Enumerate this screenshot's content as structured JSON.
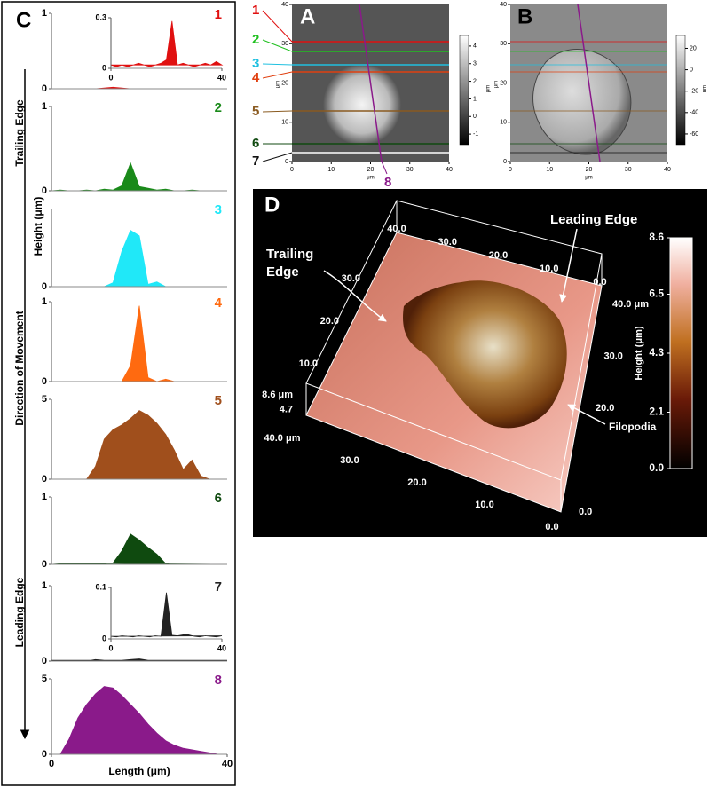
{
  "chart_data": [
    {
      "type": "area",
      "title": "1",
      "color": "#e01010",
      "xlim": [
        0,
        40
      ],
      "ylim": [
        0,
        1
      ],
      "yticks": [
        0,
        1
      ],
      "x": [
        0,
        2,
        4,
        6,
        8,
        10,
        12,
        14,
        16,
        18,
        20,
        22,
        24,
        26,
        28,
        30,
        32,
        34,
        36,
        38,
        40
      ],
      "values": [
        0,
        0,
        0,
        0,
        0,
        0,
        0.01,
        0.02,
        0.01,
        0,
        0,
        0,
        0,
        0,
        0,
        0,
        0,
        0,
        0,
        0,
        0
      ]
    },
    {
      "type": "area",
      "title": "2",
      "color": "#1a8a1a",
      "xlim": [
        0,
        40
      ],
      "ylim": [
        0,
        1
      ],
      "yticks": [
        0,
        1
      ],
      "x": [
        0,
        2,
        4,
        6,
        8,
        10,
        12,
        14,
        16,
        18,
        20,
        22,
        24,
        26,
        28,
        30,
        32,
        34,
        36,
        38,
        40
      ],
      "values": [
        0,
        0.01,
        0,
        0,
        0.01,
        0,
        0.02,
        0.01,
        0.06,
        0.33,
        0.05,
        0.03,
        0.01,
        0.02,
        0,
        0,
        0.01,
        0,
        0,
        0,
        0
      ]
    },
    {
      "type": "area",
      "title": "3",
      "color": "#20e8f8",
      "xlim": [
        0,
        40
      ],
      "ylim": [
        0,
        1
      ],
      "yticks": [
        0
      ],
      "x": [
        0,
        2,
        4,
        6,
        8,
        10,
        12,
        14,
        16,
        18,
        20,
        22,
        24,
        26,
        28,
        30,
        32,
        34,
        36,
        38,
        40
      ],
      "values": [
        0,
        0,
        0,
        0,
        0,
        0,
        0,
        0.05,
        0.45,
        0.72,
        0.65,
        0.03,
        0.06,
        0,
        0,
        0,
        0,
        0,
        0,
        0,
        0
      ]
    },
    {
      "type": "area",
      "title": "4",
      "color": "#ff6a10",
      "xlim": [
        0,
        40
      ],
      "ylim": [
        0,
        1
      ],
      "yticks": [
        0,
        1
      ],
      "x": [
        0,
        2,
        4,
        6,
        8,
        10,
        12,
        14,
        16,
        18,
        20,
        22,
        24,
        26,
        28,
        30,
        32,
        34,
        36,
        38,
        40
      ],
      "values": [
        0,
        0,
        0,
        0,
        0,
        0,
        0,
        0,
        0,
        0.2,
        0.95,
        0.05,
        0,
        0.03,
        0,
        0,
        0,
        0,
        0,
        0,
        0
      ]
    },
    {
      "type": "area",
      "title": "5",
      "color": "#a04f1c",
      "xlim": [
        0,
        40
      ],
      "ylim": [
        0,
        5
      ],
      "yticks": [
        0,
        5
      ],
      "x": [
        0,
        2,
        4,
        6,
        8,
        10,
        12,
        14,
        16,
        18,
        20,
        22,
        24,
        26,
        28,
        30,
        32,
        34,
        36,
        38,
        40
      ],
      "values": [
        0,
        0,
        0,
        0,
        0,
        0.8,
        2.5,
        3.1,
        3.4,
        3.8,
        4.3,
        4.0,
        3.5,
        2.8,
        1.8,
        0.6,
        1.2,
        0.2,
        0,
        0,
        0
      ]
    },
    {
      "type": "area",
      "title": "6",
      "color": "#0f4a0f",
      "xlim": [
        0,
        40
      ],
      "ylim": [
        0,
        1
      ],
      "yticks": [
        0,
        1
      ],
      "x": [
        0,
        2,
        4,
        6,
        8,
        10,
        12,
        14,
        16,
        18,
        20,
        22,
        24,
        26,
        28,
        30,
        32,
        34,
        36,
        38,
        40
      ],
      "values": [
        0.02,
        0.01,
        0.01,
        0.01,
        0.01,
        0.01,
        0.01,
        0.02,
        0.2,
        0.45,
        0.36,
        0.25,
        0.15,
        0.01,
        0,
        0,
        0,
        0,
        0,
        0,
        0
      ]
    },
    {
      "type": "area",
      "title": "7",
      "color": "#222222",
      "xlim": [
        0,
        40
      ],
      "ylim": [
        0,
        1
      ],
      "yticks": [
        0,
        1
      ],
      "x": [
        0,
        2,
        4,
        6,
        8,
        10,
        12,
        14,
        16,
        18,
        20,
        22,
        24,
        26,
        28,
        30,
        32,
        34,
        36,
        38,
        40
      ],
      "values": [
        0.01,
        0,
        0,
        0.01,
        0,
        0.02,
        0.01,
        0,
        0.01,
        0.02,
        0.03,
        0.01,
        0,
        0.01,
        0,
        0.01,
        0,
        0,
        0.01,
        0,
        0.01
      ]
    },
    {
      "type": "area",
      "title": "8",
      "color": "#8a1a8a",
      "xlim": [
        0,
        40
      ],
      "ylim": [
        0,
        5
      ],
      "yticks": [
        0,
        5
      ],
      "xticks": [
        0,
        40
      ],
      "xlabel": "Length (μm)",
      "x": [
        0,
        2,
        4,
        6,
        8,
        10,
        12,
        14,
        16,
        18,
        20,
        22,
        24,
        26,
        28,
        30,
        32,
        34,
        36,
        38,
        40
      ],
      "values": [
        0,
        0,
        1.0,
        2.4,
        3.3,
        4.0,
        4.5,
        4.4,
        3.9,
        3.3,
        2.7,
        2.0,
        1.4,
        0.9,
        0.6,
        0.4,
        0.3,
        0.2,
        0.1,
        0,
        0
      ]
    },
    {
      "type": "area",
      "color": "#e01010",
      "xlim": [
        0,
        40
      ],
      "ylim": [
        0,
        0.3
      ],
      "yticks": [
        0,
        0.3
      ],
      "xticks": [
        0,
        40
      ],
      "x": [
        0,
        2,
        4,
        6,
        8,
        10,
        12,
        14,
        16,
        18,
        20,
        22,
        24,
        26,
        28,
        30,
        32,
        34,
        36,
        38,
        40
      ],
      "values": [
        0.02,
        0.01,
        0.02,
        0.01,
        0.02,
        0.03,
        0.02,
        0.01,
        0.02,
        0.03,
        0.05,
        0.28,
        0.02,
        0.03,
        0.02,
        0.01,
        0.02,
        0.03,
        0.02,
        0.04,
        0.02
      ]
    },
    {
      "type": "area",
      "color": "#222222",
      "xlim": [
        0,
        40
      ],
      "ylim": [
        0,
        0.1
      ],
      "yticks": [
        0,
        0.1
      ],
      "xticks": [
        0,
        40
      ],
      "x": [
        0,
        2,
        4,
        6,
        8,
        10,
        12,
        14,
        16,
        18,
        20,
        22,
        24,
        26,
        28,
        30,
        32,
        34,
        36,
        38,
        40
      ],
      "values": [
        0.005,
        0.004,
        0.006,
        0.005,
        0.004,
        0.006,
        0.005,
        0.004,
        0.006,
        0.005,
        0.09,
        0.007,
        0.006,
        0.008,
        0.008,
        0.005,
        0.004,
        0.006,
        0.005,
        0.004,
        0.006
      ]
    }
  ],
  "panel_c": {
    "label": "C",
    "ylabel": "Height  (μm)",
    "side_labels": [
      "Trailing Edge",
      "Direction of Movement",
      "Leading Edge"
    ]
  },
  "image_a": {
    "label": "A",
    "lim": [
      0,
      40
    ],
    "ticks": [
      0,
      10,
      20,
      30,
      40
    ],
    "xlabel": "μm",
    "ylabel": "μm",
    "colorbar": {
      "lim": [
        -1.6,
        4.6
      ],
      "ticks": [
        4,
        3,
        2,
        1,
        0,
        -1
      ],
      "unit": "μm"
    },
    "lines": [
      {
        "label": "1",
        "color": "#e01010"
      },
      {
        "label": "2",
        "color": "#20c020"
      },
      {
        "label": "3",
        "color": "#20c0e0"
      },
      {
        "label": "4",
        "color": "#e04010"
      },
      {
        "label": "5",
        "color": "#8a5a20"
      },
      {
        "label": "6",
        "color": "#104a10"
      },
      {
        "label": "7",
        "color": "#111111"
      },
      {
        "label": "8",
        "color": "#8a1a8a"
      }
    ]
  },
  "image_b": {
    "label": "B",
    "lim": [
      0,
      40
    ],
    "ticks": [
      0,
      10,
      20,
      30,
      40
    ],
    "xlabel": "μm",
    "ylabel": "μm",
    "colorbar": {
      "lim": [
        -70,
        32
      ],
      "ticks": [
        20,
        0,
        -20,
        -40,
        -60
      ],
      "unit": "nm"
    }
  },
  "image_d": {
    "label": "D",
    "annotations": [
      "Leading Edge",
      "Trailing Edge",
      "Filopodia"
    ],
    "colorbar": {
      "title": "Height (μm)",
      "lim": [
        0,
        8.6
      ],
      "ticks": [
        8.6,
        6.5,
        4.3,
        2.1,
        {
          "value": 0,
          "label": "0.0"
        }
      ]
    },
    "axis_top": [
      {
        "value": 40,
        "label": "40.0"
      },
      {
        "value": 30,
        "label": "30.0"
      },
      {
        "value": 20,
        "label": "20.0"
      },
      {
        "value": 10,
        "label": "10.0"
      },
      {
        "value": 0,
        "label": "0.0"
      }
    ],
    "axis_left": [
      {
        "value": 30,
        "label": "30.0"
      },
      {
        "value": 20,
        "label": "20.0"
      },
      {
        "value": 10,
        "label": "10.0"
      }
    ],
    "axis_right": [
      {
        "value": 40,
        "label": "40.0 μm"
      },
      {
        "value": 30,
        "label": "30.0"
      },
      {
        "value": 20,
        "label": "20.0"
      },
      {
        "value": 0,
        "label": "0.0"
      }
    ],
    "axis_front": [
      {
        "value": 40,
        "label": "40.0 μm"
      },
      {
        "value": 30,
        "label": "30.0"
      },
      {
        "value": 20,
        "label": "20.0"
      },
      {
        "value": 10,
        "label": "10.0"
      },
      {
        "value": 0,
        "label": "0.0"
      }
    ],
    "axis_z": [
      {
        "value": 8.6,
        "label": "8.6 μm"
      },
      4.7
    ]
  }
}
